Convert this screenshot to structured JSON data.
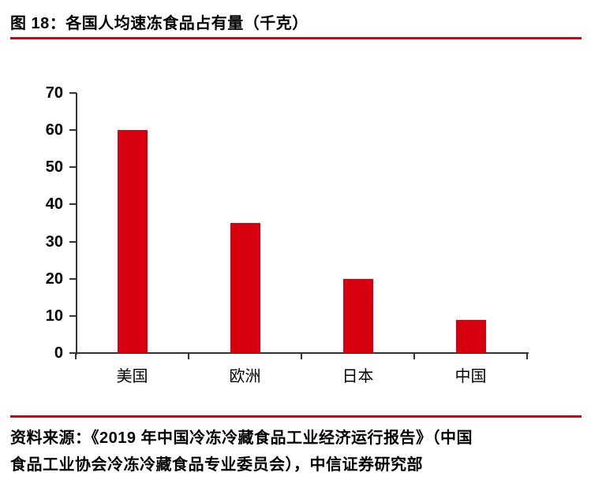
{
  "header": {
    "title": "图 18：各国人均速冻食品占有量（千克）"
  },
  "footer": {
    "source_lines": [
      "资料来源：《2019 年中国冷冻冷藏食品工业经济运行报告》（中国",
      "食品工业协会冷冻冷藏食品专业委员会），中信证券研究部"
    ]
  },
  "colors": {
    "bar": "#D7000F",
    "rule": "#B40D12",
    "axis": "#333333",
    "text": "#000000"
  },
  "chart_data": {
    "type": "bar",
    "title": "各国人均速冻食品占有量（千克）",
    "categories": [
      "美国",
      "欧洲",
      "日本",
      "中国"
    ],
    "values": [
      60,
      35,
      20,
      9
    ],
    "xlabel": "",
    "ylabel": "",
    "ylim": [
      0,
      70
    ],
    "yticks": [
      0,
      10,
      20,
      30,
      40,
      50,
      60,
      70
    ],
    "grid": false,
    "legend": false,
    "bar_color": "#D7000F"
  }
}
